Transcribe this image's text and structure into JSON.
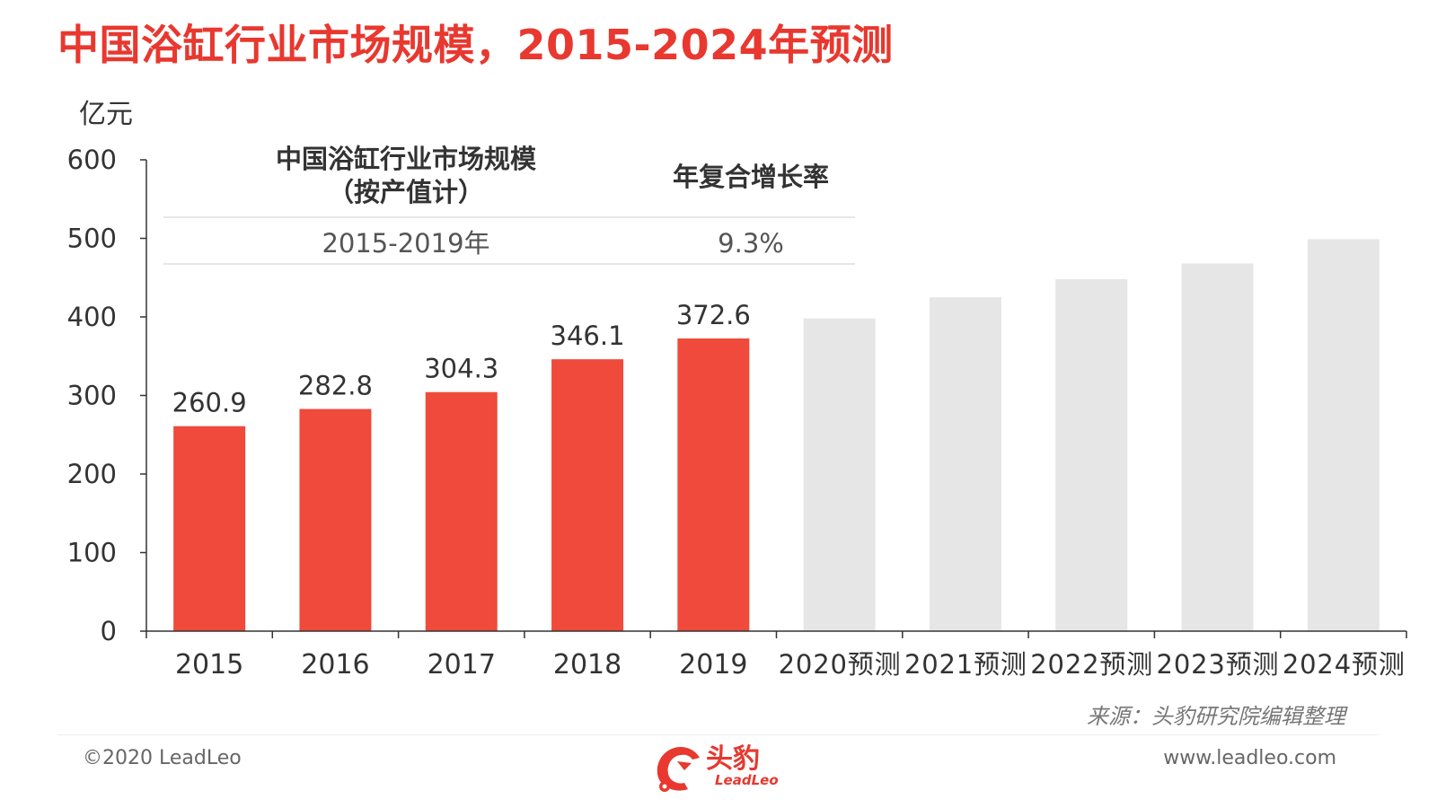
{
  "title": "中国浴缸行业市场规模，2015-2024年预测",
  "source": "来源：头豹研究院编辑整理",
  "footer": {
    "copyright": "©2020 LeadLeo",
    "website": "www.leadleo.com",
    "logo_text": "头豹",
    "logo_sub": "LeadLeo"
  },
  "colors": {
    "title": "#e8382f",
    "actual_bar": "#ef4a3c",
    "forecast_bar": "#e6e6e6"
  },
  "cagr_table": {
    "col1_header_line1": "中国浴缸行业市场规模",
    "col1_header_line2": "（按产值计）",
    "col2_header": "年复合增长率",
    "row_period": "2015-2019年",
    "row_value": "9.3%"
  },
  "chart_data": {
    "type": "bar",
    "ylabel": "亿元",
    "ylim": [
      0,
      600
    ],
    "yticks": [
      "0",
      "100",
      "200",
      "300",
      "400",
      "500",
      "600"
    ],
    "categories": [
      "2015",
      "2016",
      "2017",
      "2018",
      "2019",
      "2020预测",
      "2021预测",
      "2022预测",
      "2023预测",
      "2024预测"
    ],
    "values": [
      260.9,
      282.8,
      304.3,
      346.1,
      372.6,
      398,
      425,
      448,
      468,
      499
    ],
    "data_labels": [
      "260.9",
      "282.8",
      "304.3",
      "346.1",
      "372.6",
      "",
      "",
      "",
      "",
      ""
    ],
    "forecast": [
      false,
      false,
      false,
      false,
      false,
      true,
      true,
      true,
      true,
      true
    ],
    "grid": false
  }
}
